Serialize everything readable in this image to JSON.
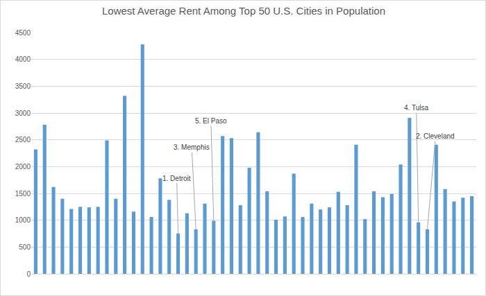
{
  "chart_data": {
    "type": "bar",
    "title": "Lowest Average Rent Among Top 50 U.S. Cities in Population",
    "categories": [
      null,
      null,
      null,
      null,
      null,
      null,
      null,
      null,
      null,
      null,
      null,
      null,
      null,
      null,
      null,
      null,
      null,
      null,
      null,
      null,
      null,
      null,
      null,
      null,
      null,
      null,
      null,
      null,
      null,
      null,
      null,
      null,
      null,
      null,
      null,
      null,
      null,
      null,
      null,
      null,
      null,
      null,
      null,
      null,
      null,
      null,
      null,
      null,
      null,
      null
    ],
    "values": [
      2320,
      2780,
      1620,
      1400,
      1210,
      1250,
      1240,
      1250,
      2490,
      1400,
      3320,
      1160,
      4280,
      1060,
      1780,
      1380,
      750,
      1130,
      830,
      1310,
      990,
      2570,
      2530,
      1280,
      1980,
      2640,
      1540,
      1010,
      1070,
      1870,
      1060,
      1310,
      1200,
      1240,
      1530,
      1280,
      2410,
      1020,
      1540,
      1430,
      1490,
      2040,
      2910,
      960,
      830,
      2410,
      1580,
      1350,
      1420,
      1450
    ],
    "color": "#5b9bd5",
    "ylim": [
      0,
      4500
    ],
    "yticks": [
      0,
      500,
      1000,
      1500,
      2000,
      2500,
      3000,
      3500,
      4000,
      4500
    ],
    "grid": true,
    "tick_labels": "y",
    "annotations": [
      {
        "text": "1. Detroit",
        "index": 16
      },
      {
        "text": "3. Memphis",
        "index": 18
      },
      {
        "text": "5. El Paso",
        "index": 20
      },
      {
        "text": "4. Tulsa",
        "index": 43
      },
      {
        "text": "2. Cleveland",
        "index": 44
      }
    ]
  }
}
